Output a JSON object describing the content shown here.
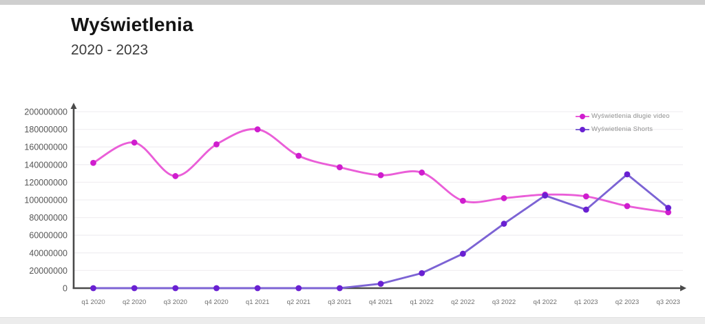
{
  "chart_data": {
    "type": "line",
    "title": "Wyświetlenia",
    "subtitle": "2020 - 2023",
    "categories": [
      "q1 2020",
      "q2 2020",
      "q3 2020",
      "q4 2020",
      "q1 2021",
      "q2 2021",
      "q3 2021",
      "q4 2021",
      "q1 2022",
      "q2 2022",
      "q3 2022",
      "q4 2022",
      "q1 2023",
      "q2 2023",
      "q3 2023"
    ],
    "series": [
      {
        "name": "Wyświetlenia długie video",
        "values": [
          142000000,
          165000000,
          127000000,
          163000000,
          180000000,
          150000000,
          137000000,
          128000000,
          131000000,
          99000000,
          102000000,
          106000000,
          104000000,
          93000000,
          86000000
        ],
        "line_color": "#ea5ed8",
        "marker_color": "#cf1dce",
        "smooth": true
      },
      {
        "name": "Wyświetlenia Shorts",
        "values": [
          0,
          0,
          0,
          0,
          0,
          0,
          0,
          5000000,
          17000000,
          39000000,
          73000000,
          105000000,
          89000000,
          129000000,
          91000000
        ],
        "line_color": "#7c63d4",
        "marker_color": "#6920d2",
        "smooth": false
      }
    ],
    "ylim": [
      0,
      200000000
    ],
    "y_ticks": [
      0,
      20000000,
      40000000,
      60000000,
      80000000,
      100000000,
      120000000,
      140000000,
      160000000,
      180000000,
      200000000
    ],
    "xlabel": "",
    "ylabel": "",
    "grid": true,
    "legend_position": "top-right",
    "axis_color": "#4a4a4a",
    "grid_color": "#f1eff2",
    "y_tick_color": "#565656",
    "x_tick_color": "#6e6e6e"
  }
}
